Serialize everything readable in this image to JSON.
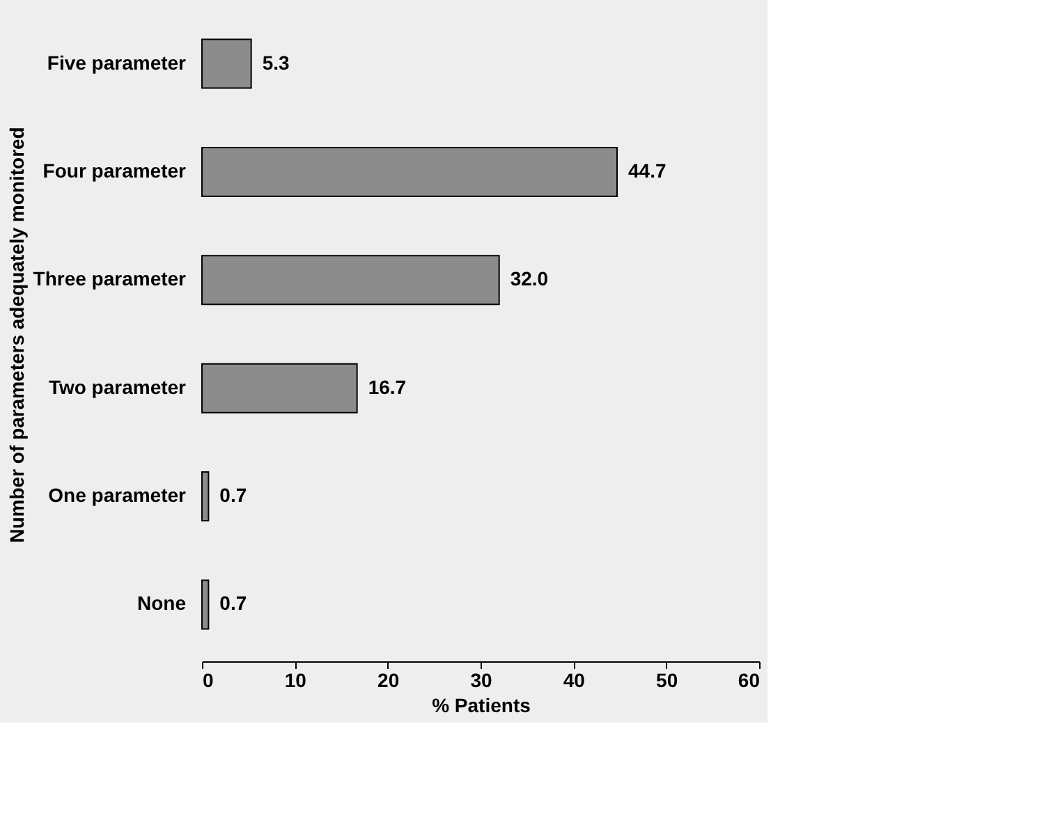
{
  "chart_data": {
    "type": "bar",
    "orientation": "horizontal",
    "categories": [
      "Five parameter",
      "Four parameter",
      "Three parameter",
      "Two parameter",
      "One parameter",
      "None"
    ],
    "values": [
      5.3,
      44.7,
      32.0,
      16.7,
      0.7,
      0.7
    ],
    "value_labels": [
      "5.3",
      "44.7",
      "32.0",
      "16.7",
      "0.7",
      "0.7"
    ],
    "color": "#8c8c8c",
    "xlabel": "% Patients",
    "ylabel": "Number of parameters adequately monitored",
    "xlim": [
      0,
      60
    ],
    "xticks": [
      0,
      10,
      20,
      30,
      40,
      50,
      60
    ],
    "grid": false
  }
}
